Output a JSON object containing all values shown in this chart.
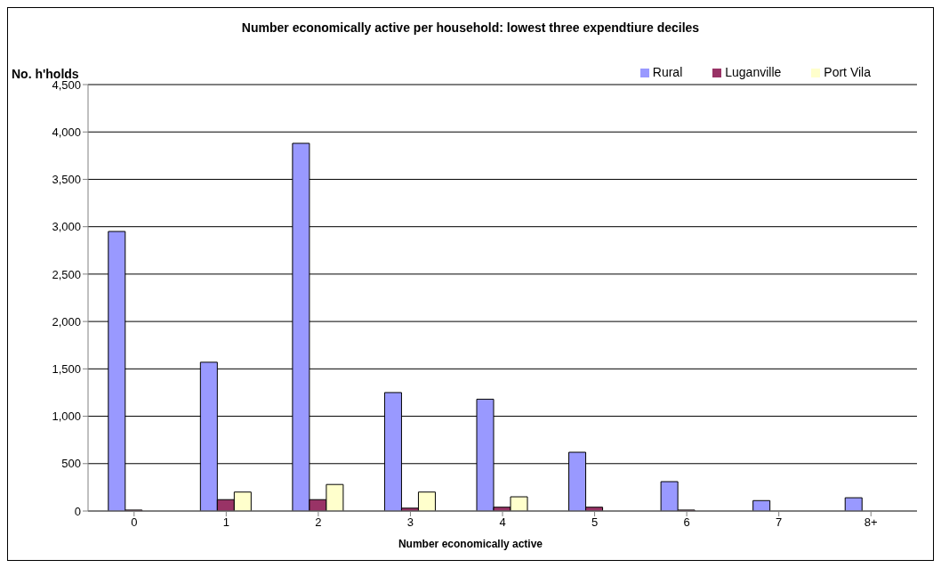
{
  "chart_data": {
    "type": "bar",
    "title": "Number economically active per household: lowest three expendtiure deciles",
    "xlabel": "Number economically active",
    "ylabel": "No. h'holds",
    "categories": [
      "0",
      "1",
      "2",
      "3",
      "4",
      "5",
      "6",
      "7",
      "8+"
    ],
    "series": [
      {
        "name": "Rural",
        "color": "#9999ff",
        "values": [
          2950,
          1570,
          3880,
          1250,
          1180,
          620,
          310,
          110,
          140
        ]
      },
      {
        "name": "Luganville",
        "color": "#993366",
        "values": [
          10,
          120,
          120,
          30,
          40,
          40,
          10,
          0,
          0
        ]
      },
      {
        "name": "Port Vila",
        "color": "#ffffcc",
        "values": [
          null,
          200,
          280,
          200,
          150,
          0,
          0,
          0,
          null
        ]
      }
    ],
    "ylim": [
      0,
      4500
    ],
    "yticks": [
      {
        "value": 0,
        "label": "0"
      },
      {
        "value": 500,
        "label": "500"
      },
      {
        "value": 1000,
        "label": "1,000"
      },
      {
        "value": 1500,
        "label": "1,500"
      },
      {
        "value": 2000,
        "label": "2,000"
      },
      {
        "value": 2500,
        "label": "2,500"
      },
      {
        "value": 3000,
        "label": "3,000"
      },
      {
        "value": 3500,
        "label": "3,500"
      },
      {
        "value": 4000,
        "label": "4,000"
      },
      {
        "value": 4500,
        "label": "4,500"
      }
    ],
    "grid": "y",
    "legend": "top right"
  }
}
